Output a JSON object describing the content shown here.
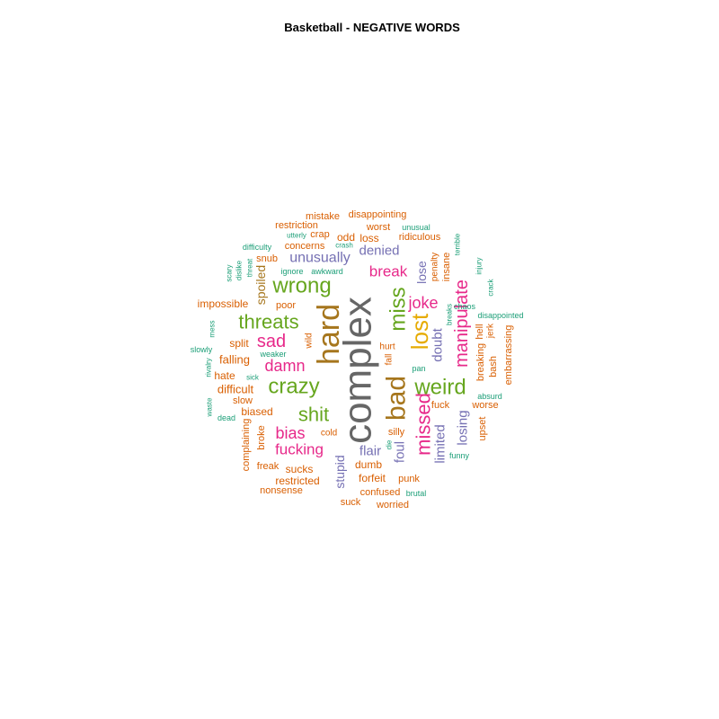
{
  "title": "Basketball - NEGATIVE WORDS",
  "palette": {
    "gray": "#666666",
    "olive": "#A6761D",
    "pink": "#E7298A",
    "green": "#66A61E",
    "gold": "#E6AB02",
    "purple": "#7570B3",
    "orange": "#D95F02",
    "teal": "#1B9E77"
  },
  "words": [
    {
      "text": "complex",
      "color": "gray"
    },
    {
      "text": "hard",
      "color": "olive"
    },
    {
      "text": "bad",
      "color": "olive"
    },
    {
      "text": "miss",
      "color": "green"
    },
    {
      "text": "lost",
      "color": "gold"
    },
    {
      "text": "missed",
      "color": "pink"
    },
    {
      "text": "manipulate",
      "color": "pink"
    },
    {
      "text": "weird",
      "color": "green"
    },
    {
      "text": "wrong",
      "color": "green"
    },
    {
      "text": "threats",
      "color": "green"
    },
    {
      "text": "crazy",
      "color": "green"
    },
    {
      "text": "shit",
      "color": "green"
    },
    {
      "text": "sad",
      "color": "pink"
    },
    {
      "text": "damn",
      "color": "pink"
    },
    {
      "text": "bias",
      "color": "pink"
    },
    {
      "text": "fucking",
      "color": "pink"
    },
    {
      "text": "joke",
      "color": "pink"
    },
    {
      "text": "break",
      "color": "pink"
    },
    {
      "text": "denied",
      "color": "purple"
    },
    {
      "text": "unusually",
      "color": "purple"
    },
    {
      "text": "losing",
      "color": "purple"
    },
    {
      "text": "limited",
      "color": "purple"
    },
    {
      "text": "stupid",
      "color": "purple"
    },
    {
      "text": "flair",
      "color": "purple"
    },
    {
      "text": "foul",
      "color": "purple"
    },
    {
      "text": "doubt",
      "color": "purple"
    },
    {
      "text": "lose",
      "color": "purple"
    },
    {
      "text": "spoiled",
      "color": "olive"
    },
    {
      "text": "impossible",
      "color": "orange"
    },
    {
      "text": "split",
      "color": "orange"
    },
    {
      "text": "falling",
      "color": "orange"
    },
    {
      "text": "difficult",
      "color": "orange"
    },
    {
      "text": "hate",
      "color": "orange"
    },
    {
      "text": "slow",
      "color": "orange"
    },
    {
      "text": "biased",
      "color": "orange"
    },
    {
      "text": "complaining",
      "color": "orange"
    },
    {
      "text": "broke",
      "color": "orange"
    },
    {
      "text": "freak",
      "color": "orange"
    },
    {
      "text": "sucks",
      "color": "orange"
    },
    {
      "text": "restricted",
      "color": "orange"
    },
    {
      "text": "nonsense",
      "color": "orange"
    },
    {
      "text": "mistake",
      "color": "orange"
    },
    {
      "text": "disappointing",
      "color": "orange"
    },
    {
      "text": "restriction",
      "color": "orange"
    },
    {
      "text": "worst",
      "color": "orange"
    },
    {
      "text": "crap",
      "color": "orange"
    },
    {
      "text": "odd",
      "color": "orange"
    },
    {
      "text": "loss",
      "color": "orange"
    },
    {
      "text": "ridiculous",
      "color": "orange"
    },
    {
      "text": "concerns",
      "color": "orange"
    },
    {
      "text": "snub",
      "color": "orange"
    },
    {
      "text": "poor",
      "color": "orange"
    },
    {
      "text": "silly",
      "color": "orange"
    },
    {
      "text": "dumb",
      "color": "orange"
    },
    {
      "text": "forfeit",
      "color": "orange"
    },
    {
      "text": "punk",
      "color": "orange"
    },
    {
      "text": "confused",
      "color": "orange"
    },
    {
      "text": "suck",
      "color": "orange"
    },
    {
      "text": "worried",
      "color": "orange"
    },
    {
      "text": "cold",
      "color": "orange"
    },
    {
      "text": "fuck",
      "color": "orange"
    },
    {
      "text": "hurt",
      "color": "orange"
    },
    {
      "text": "fall",
      "color": "orange"
    },
    {
      "text": "wild",
      "color": "orange"
    },
    {
      "text": "penalty",
      "color": "orange"
    },
    {
      "text": "insane",
      "color": "orange"
    },
    {
      "text": "breaking",
      "color": "orange"
    },
    {
      "text": "hell",
      "color": "orange"
    },
    {
      "text": "jerk",
      "color": "orange"
    },
    {
      "text": "bash",
      "color": "orange"
    },
    {
      "text": "embarrassing",
      "color": "orange"
    },
    {
      "text": "worse",
      "color": "orange"
    },
    {
      "text": "upset",
      "color": "orange"
    },
    {
      "text": "unusual",
      "color": "teal"
    },
    {
      "text": "utterly",
      "color": "teal"
    },
    {
      "text": "crash",
      "color": "teal"
    },
    {
      "text": "difficulty",
      "color": "teal"
    },
    {
      "text": "dislike",
      "color": "teal"
    },
    {
      "text": "threat",
      "color": "teal"
    },
    {
      "text": "scary",
      "color": "teal"
    },
    {
      "text": "ignore",
      "color": "teal"
    },
    {
      "text": "awkward",
      "color": "teal"
    },
    {
      "text": "terrible",
      "color": "teal"
    },
    {
      "text": "injury",
      "color": "teal"
    },
    {
      "text": "crack",
      "color": "teal"
    },
    {
      "text": "breaks",
      "color": "teal"
    },
    {
      "text": "chaos",
      "color": "teal"
    },
    {
      "text": "disappointed",
      "color": "teal"
    },
    {
      "text": "mess",
      "color": "teal"
    },
    {
      "text": "slowly",
      "color": "teal"
    },
    {
      "text": "rivalry",
      "color": "teal"
    },
    {
      "text": "weaker",
      "color": "teal"
    },
    {
      "text": "sick",
      "color": "teal"
    },
    {
      "text": "waste",
      "color": "teal"
    },
    {
      "text": "dead",
      "color": "teal"
    },
    {
      "text": "pan",
      "color": "teal"
    },
    {
      "text": "die",
      "color": "teal"
    },
    {
      "text": "absurd",
      "color": "teal"
    },
    {
      "text": "funny",
      "color": "teal"
    },
    {
      "text": "brutal",
      "color": "teal"
    }
  ]
}
